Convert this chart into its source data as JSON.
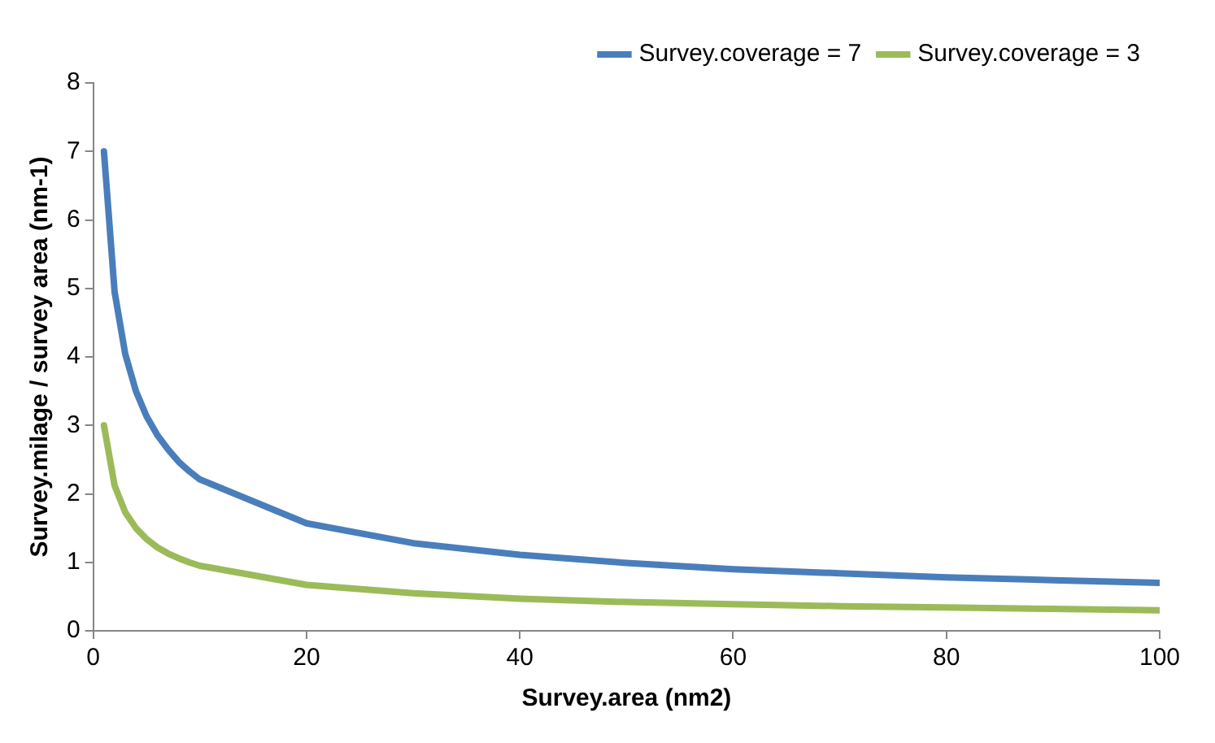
{
  "chart_data": {
    "type": "line",
    "xlabel": "Survey.area (nm2)",
    "ylabel": "Survey.milage / survey area (nm-1)",
    "x": [
      1,
      2,
      3,
      4,
      5,
      6,
      7,
      8,
      9,
      10,
      20,
      30,
      40,
      50,
      60,
      70,
      80,
      90,
      100
    ],
    "series": [
      {
        "name": "Survey.coverage = 7",
        "color": "#4a7ebb",
        "values": [
          7,
          4.95,
          4.04,
          3.5,
          3.13,
          2.86,
          2.65,
          2.47,
          2.33,
          2.21,
          1.57,
          1.28,
          1.11,
          0.99,
          0.9,
          0.84,
          0.78,
          0.74,
          0.7
        ]
      },
      {
        "name": "Survey.coverage = 3",
        "color": "#9bbb59",
        "values": [
          3,
          2.12,
          1.73,
          1.5,
          1.34,
          1.22,
          1.13,
          1.06,
          1,
          0.95,
          0.67,
          0.55,
          0.47,
          0.42,
          0.39,
          0.36,
          0.34,
          0.32,
          0.3
        ]
      }
    ],
    "xlim": [
      0,
      100
    ],
    "xticks": [
      0,
      20,
      40,
      60,
      80,
      100
    ],
    "ylim": [
      0,
      8
    ],
    "yticks": [
      0,
      1,
      2,
      3,
      4,
      5,
      6,
      7,
      8
    ],
    "grid": false,
    "legend": "top right",
    "marker": "none",
    "line_style": "solid"
  }
}
